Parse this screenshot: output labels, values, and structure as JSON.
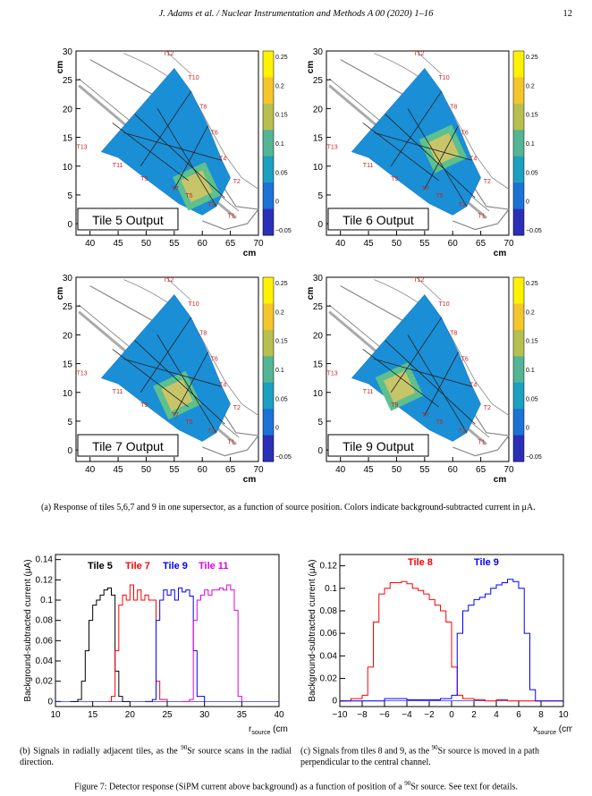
{
  "header": {
    "running": "J. Adams et al. / Nuclear Instrumentation and Methods A 00 (2020) 1–16",
    "page": "12"
  },
  "heatmaps": {
    "unit": "cm",
    "xticks": [
      "40",
      "45",
      "50",
      "55",
      "60",
      "65",
      "70"
    ],
    "yticks": [
      "0",
      "5",
      "10",
      "15",
      "20",
      "25",
      "30"
    ],
    "colorbar": [
      "0.25",
      "0.2",
      "0.15",
      "0.1",
      "0.05",
      "0",
      "−0.05"
    ],
    "tile_labels": [
      "T12",
      "T10",
      "T8",
      "T6",
      "T4",
      "T2",
      "T1",
      "T3",
      "T5",
      "T7",
      "T9",
      "T11",
      "T13"
    ],
    "panels": [
      {
        "title": "Tile 5 Output",
        "hot": 5
      },
      {
        "title": "Tile 6 Output",
        "hot": 6
      },
      {
        "title": "Tile 7 Output",
        "hot": 7
      },
      {
        "title": "Tile 9 Output",
        "hot": 9
      }
    ]
  },
  "caption_a": "(a) Response of tiles 5,6,7 and 9 in one supersector, as a function of source position. Colors indicate background-subtracted current in μA.",
  "caption_b_1": "(b) Signals in radially adjacent tiles, as the ",
  "caption_b_sup": "90",
  "caption_b_2": "Sr source scans in the radial direction.",
  "caption_c_1": "(c) Signals from tiles 8 and 9, as the ",
  "caption_c_sup": "90",
  "caption_c_2": "Sr source is moved in a path perpendicular to the central channel.",
  "figure_caption_1": "Figure 7: Detector response (SiPM current above background) as a function of position of a ",
  "figure_caption_sup": "90",
  "figure_caption_2": "Sr source. See text for details.",
  "chart_data": [
    {
      "type": "line",
      "ylabel": "Background-subtracted current (μA)",
      "xlabel": "r_source (cm)",
      "xlim": [
        10,
        40
      ],
      "ylim": [
        -0.005,
        0.145
      ],
      "xticks": [
        "10",
        "15",
        "20",
        "25",
        "30",
        "35",
        "40"
      ],
      "yticks": [
        "0",
        "0.02",
        "0.04",
        "0.06",
        "0.08",
        "0.1",
        "0.12",
        "0.14"
      ],
      "series": [
        {
          "name": "Tile 5",
          "color": "#000000",
          "x": [
            12,
            13,
            13.5,
            14,
            14.5,
            15,
            15.5,
            16,
            16.5,
            17,
            17.5,
            18,
            18.5,
            19,
            20
          ],
          "y": [
            0,
            0.002,
            0.02,
            0.05,
            0.08,
            0.095,
            0.1,
            0.105,
            0.11,
            0.112,
            0.105,
            0.03,
            0.005,
            0,
            0
          ]
        },
        {
          "name": "Tile 7",
          "color": "#ff0000",
          "x": [
            17,
            17.5,
            18,
            18.5,
            19,
            19.5,
            20,
            20.5,
            21,
            21.5,
            22,
            22.5,
            23,
            23.5,
            24,
            25
          ],
          "y": [
            0,
            0.005,
            0.05,
            0.095,
            0.105,
            0.1,
            0.115,
            0.1,
            0.11,
            0.1,
            0.105,
            0.1,
            0.1,
            0.02,
            0.002,
            0
          ]
        },
        {
          "name": "Tile 9",
          "color": "#0000ff",
          "x": [
            22,
            23,
            23.5,
            24,
            24.5,
            25,
            25.5,
            26,
            26.5,
            27,
            27.5,
            28,
            28.5,
            29,
            30
          ],
          "y": [
            0,
            0.002,
            0.08,
            0.1,
            0.11,
            0.105,
            0.11,
            0.1,
            0.112,
            0.108,
            0.11,
            0.104,
            0.05,
            0.005,
            0
          ]
        },
        {
          "name": "Tile 11",
          "color": "#e000e0",
          "x": [
            27,
            28,
            28.5,
            29,
            29.5,
            30,
            30.5,
            31,
            31.5,
            32,
            32.5,
            33,
            33.5,
            34,
            34.5,
            35
          ],
          "y": [
            0,
            0.002,
            0.08,
            0.1,
            0.105,
            0.11,
            0.105,
            0.11,
            0.11,
            0.112,
            0.11,
            0.115,
            0.11,
            0.09,
            0.005,
            0
          ]
        }
      ]
    },
    {
      "type": "line",
      "ylabel": "Background-subtracted current (μA)",
      "xlabel": "x_source (cm)",
      "xlim": [
        -10,
        10
      ],
      "ylim": [
        -0.005,
        0.13
      ],
      "xticks": [
        "−10",
        "−8",
        "−6",
        "−4",
        "−2",
        "0",
        "2",
        "4",
        "6",
        "8",
        "10"
      ],
      "yticks": [
        "0",
        "0.02",
        "0.04",
        "0.06",
        "0.08",
        "0.1",
        "0.12"
      ],
      "series": [
        {
          "name": "Tile 8",
          "color": "#ff0000",
          "x": [
            -10,
            -9,
            -8,
            -7.5,
            -7,
            -6.5,
            -6,
            -5.5,
            -5,
            -4.5,
            -4,
            -3.5,
            -3,
            -2.5,
            -2,
            -1.5,
            -1,
            -0.5,
            0,
            0.5,
            1,
            2,
            3,
            4,
            5,
            6,
            7,
            8,
            10
          ],
          "y": [
            0,
            0.002,
            0.005,
            0.03,
            0.07,
            0.095,
            0.1,
            0.105,
            0.105,
            0.106,
            0.104,
            0.1,
            0.098,
            0.095,
            0.09,
            0.085,
            0.08,
            0.07,
            0.03,
            0.005,
            0.002,
            0.001,
            0,
            0.001,
            0,
            0,
            0,
            0,
            0
          ]
        },
        {
          "name": "Tile 9",
          "color": "#0000ff",
          "x": [
            -10,
            -8,
            -6,
            -4,
            -2,
            -1,
            0,
            0.5,
            1,
            1.5,
            2,
            2.5,
            3,
            3.5,
            4,
            4.5,
            5,
            5.5,
            6,
            6.5,
            7,
            7.5,
            8,
            10
          ],
          "y": [
            0,
            0,
            0.002,
            0.001,
            0.001,
            0.002,
            0.005,
            0.06,
            0.08,
            0.085,
            0.09,
            0.092,
            0.095,
            0.1,
            0.103,
            0.105,
            0.108,
            0.106,
            0.1,
            0.06,
            0.01,
            0,
            0,
            0
          ]
        }
      ]
    }
  ]
}
